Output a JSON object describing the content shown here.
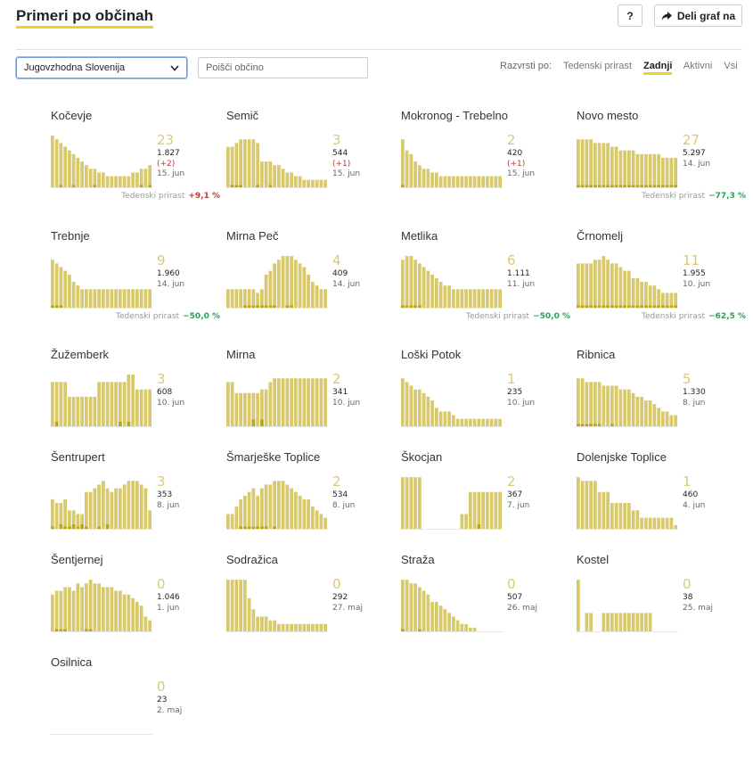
{
  "header": {
    "title": "Primeri po občinah",
    "help_label": "?",
    "share_label": "Deli graf na"
  },
  "controls": {
    "region_selected": "Jugovzhodna Slovenija",
    "search_placeholder": "Poišči občino",
    "sort_label": "Razvrsti po:",
    "sort_options": [
      "Tedenski prirast",
      "Zadnji",
      "Aktivni",
      "Vsi"
    ],
    "sort_active": "Zadnji"
  },
  "colors": {
    "bar": "#d8c96c",
    "bar_dark": "#b8a614",
    "accent": "#f2cf2a",
    "positive": "#c0392b",
    "negative": "#27a35a"
  },
  "weekly_label": "Tedenski prirast",
  "municipalities": [
    {
      "name": "Kočevje",
      "active": "23",
      "total": "1.827",
      "diff": "(+2)",
      "date": "15. jun",
      "weekly": "+9,1 %",
      "weekly_type": "pos",
      "bars": [
        14,
        13,
        12,
        11,
        10,
        9,
        8,
        7,
        6,
        5,
        5,
        4,
        4,
        3,
        3,
        3,
        3,
        3,
        3,
        4,
        4,
        5,
        5,
        6
      ],
      "dark": [
        0,
        0,
        1,
        0,
        0,
        1,
        0,
        0,
        0,
        0,
        1,
        0,
        0,
        0,
        0,
        0,
        0,
        0,
        0,
        0,
        0,
        1,
        0,
        1
      ]
    },
    {
      "name": "Semič",
      "active": "3",
      "total": "544",
      "diff": "(+1)",
      "date": "15. jun",
      "weekly": "",
      "weekly_type": "",
      "bars": [
        11,
        11,
        12,
        13,
        13,
        13,
        13,
        12,
        7,
        7,
        7,
        6,
        6,
        5,
        4,
        4,
        3,
        3,
        2,
        2,
        2,
        2,
        2,
        2
      ],
      "dark": [
        0,
        1,
        1,
        1,
        0,
        0,
        0,
        1,
        0,
        0,
        1,
        0,
        0,
        0,
        0,
        0,
        0,
        0,
        0,
        0,
        0,
        0,
        0,
        0
      ]
    },
    {
      "name": "Mokronog - Trebelno",
      "active": "2",
      "total": "420",
      "diff": "(+1)",
      "date": "15. jun",
      "weekly": "",
      "weekly_type": "",
      "bars": [
        13,
        10,
        9,
        7,
        6,
        5,
        5,
        4,
        4,
        3,
        3,
        3,
        3,
        3,
        3,
        3,
        3,
        3,
        3,
        3,
        3,
        3,
        3,
        3
      ],
      "dark": [
        1,
        0,
        0,
        0,
        0,
        0,
        0,
        0,
        0,
        0,
        0,
        0,
        0,
        0,
        0,
        0,
        0,
        0,
        0,
        0,
        0,
        0,
        0,
        0
      ]
    },
    {
      "name": "Novo mesto",
      "active": "27",
      "total": "5.297",
      "diff": "",
      "date": "14. jun",
      "weekly": "−77,3 %",
      "weekly_type": "neg",
      "bars": [
        13,
        13,
        13,
        13,
        12,
        12,
        12,
        12,
        11,
        11,
        10,
        10,
        10,
        10,
        9,
        9,
        9,
        9,
        9,
        9,
        8,
        8,
        8,
        8
      ],
      "dark": [
        1,
        1,
        1,
        1,
        1,
        1,
        1,
        1,
        1,
        1,
        1,
        1,
        1,
        1,
        1,
        1,
        1,
        1,
        1,
        1,
        1,
        1,
        1,
        1
      ]
    },
    {
      "name": "Trebnje",
      "active": "9",
      "total": "1.960",
      "diff": "",
      "date": "14. jun",
      "weekly": "−50,0 %",
      "weekly_type": "neg",
      "bars": [
        13,
        12,
        11,
        10,
        9,
        7,
        6,
        5,
        5,
        5,
        5,
        5,
        5,
        5,
        5,
        5,
        5,
        5,
        5,
        5,
        5,
        5,
        5,
        5
      ],
      "dark": [
        1,
        1,
        1,
        0,
        0,
        0,
        0,
        0,
        0,
        0,
        0,
        0,
        0,
        0,
        0,
        0,
        0,
        0,
        0,
        0,
        0,
        0,
        0,
        0
      ]
    },
    {
      "name": "Mirna Peč",
      "active": "4",
      "total": "409",
      "diff": "",
      "date": "14. jun",
      "weekly": "",
      "weekly_type": "",
      "bars": [
        5,
        5,
        5,
        5,
        5,
        5,
        5,
        4,
        5,
        9,
        10,
        12,
        13,
        14,
        14,
        14,
        13,
        12,
        11,
        9,
        7,
        6,
        5,
        5
      ],
      "dark": [
        0,
        0,
        0,
        0,
        1,
        1,
        1,
        1,
        1,
        1,
        1,
        1,
        0,
        0,
        1,
        1,
        0,
        0,
        0,
        0,
        0,
        0,
        0,
        0
      ]
    },
    {
      "name": "Metlika",
      "active": "6",
      "total": "1.111",
      "diff": "",
      "date": "11. jun",
      "weekly": "−50,0 %",
      "weekly_type": "neg",
      "bars": [
        13,
        14,
        14,
        13,
        12,
        11,
        10,
        9,
        8,
        7,
        6,
        6,
        5,
        5,
        5,
        5,
        5,
        5,
        5,
        5,
        5,
        5,
        5,
        5
      ],
      "dark": [
        1,
        1,
        1,
        1,
        1,
        0,
        0,
        0,
        0,
        0,
        0,
        0,
        0,
        0,
        0,
        0,
        0,
        0,
        0,
        0,
        0,
        0,
        0,
        0
      ]
    },
    {
      "name": "Črnomelj",
      "active": "11",
      "total": "1.955",
      "diff": "",
      "date": "10. jun",
      "weekly": "−62,5 %",
      "weekly_type": "neg",
      "bars": [
        12,
        12,
        12,
        12,
        13,
        13,
        14,
        13,
        12,
        12,
        11,
        10,
        10,
        8,
        8,
        7,
        7,
        6,
        6,
        5,
        4,
        4,
        4,
        4
      ],
      "dark": [
        1,
        1,
        1,
        1,
        1,
        1,
        1,
        1,
        1,
        1,
        1,
        1,
        1,
        1,
        1,
        1,
        1,
        1,
        1,
        1,
        1,
        1,
        1,
        1
      ]
    },
    {
      "name": "Žužemberk",
      "active": "3",
      "total": "608",
      "diff": "",
      "date": "10. jun",
      "weekly": "",
      "weekly_type": "",
      "bars": [
        12,
        12,
        12,
        12,
        8,
        8,
        8,
        8,
        8,
        8,
        8,
        12,
        12,
        12,
        12,
        12,
        12,
        12,
        14,
        14,
        10,
        10,
        10,
        10
      ],
      "dark": [
        0,
        2,
        0,
        0,
        0,
        0,
        0,
        0,
        0,
        0,
        0,
        0,
        0,
        0,
        0,
        0,
        2,
        0,
        2,
        0,
        0,
        0,
        0,
        0
      ]
    },
    {
      "name": "Mirna",
      "active": "2",
      "total": "341",
      "diff": "",
      "date": "10. jun",
      "weekly": "",
      "weekly_type": "",
      "bars": [
        12,
        12,
        9,
        9,
        9,
        9,
        9,
        9,
        10,
        10,
        12,
        13,
        13,
        13,
        13,
        13,
        13,
        13,
        13,
        13,
        13,
        13,
        13,
        13
      ],
      "dark": [
        0,
        0,
        0,
        0,
        0,
        0,
        3,
        0,
        3,
        0,
        0,
        0,
        0,
        0,
        0,
        0,
        0,
        0,
        0,
        0,
        0,
        0,
        0,
        0
      ]
    },
    {
      "name": "Loški Potok",
      "active": "1",
      "total": "235",
      "diff": "",
      "date": "10. jun",
      "weekly": "",
      "weekly_type": "",
      "bars": [
        13,
        12,
        11,
        10,
        10,
        9,
        8,
        7,
        5,
        4,
        4,
        4,
        3,
        2,
        2,
        2,
        2,
        2,
        2,
        2,
        2,
        2,
        2,
        2
      ],
      "dark": [
        0,
        0,
        0,
        0,
        0,
        0,
        0,
        0,
        0,
        0,
        0,
        0,
        0,
        0,
        0,
        0,
        0,
        0,
        0,
        0,
        0,
        0,
        0,
        0
      ]
    },
    {
      "name": "Ribnica",
      "active": "5",
      "total": "1.330",
      "diff": "",
      "date": "8. jun",
      "weekly": "",
      "weekly_type": "",
      "bars": [
        13,
        13,
        12,
        12,
        12,
        12,
        11,
        11,
        11,
        11,
        10,
        10,
        10,
        9,
        8,
        8,
        7,
        7,
        6,
        5,
        4,
        4,
        3,
        3
      ],
      "dark": [
        1,
        1,
        1,
        1,
        1,
        1,
        0,
        0,
        1,
        0,
        0,
        0,
        0,
        0,
        0,
        0,
        0,
        0,
        0,
        0,
        0,
        0,
        0,
        0
      ]
    },
    {
      "name": "Šentrupert",
      "active": "3",
      "total": "353",
      "diff": "",
      "date": "8. jun",
      "weekly": "",
      "weekly_type": "",
      "bars": [
        8,
        7,
        7,
        8,
        5,
        5,
        4,
        4,
        10,
        10,
        11,
        12,
        13,
        11,
        10,
        11,
        11,
        12,
        13,
        13,
        13,
        12,
        11,
        5
      ],
      "dark": [
        1,
        0,
        2,
        1,
        1,
        2,
        1,
        2,
        1,
        0,
        0,
        1,
        0,
        2,
        0,
        0,
        0,
        0,
        0,
        0,
        0,
        0,
        0,
        0
      ]
    },
    {
      "name": "Šmarješke Toplice",
      "active": "2",
      "total": "534",
      "diff": "",
      "date": "8. jun",
      "weekly": "",
      "weekly_type": "",
      "bars": [
        4,
        4,
        6,
        8,
        9,
        10,
        11,
        9,
        11,
        12,
        12,
        13,
        13,
        13,
        12,
        11,
        10,
        9,
        8,
        8,
        6,
        5,
        4,
        3
      ],
      "dark": [
        0,
        0,
        0,
        1,
        1,
        1,
        1,
        1,
        1,
        1,
        0,
        1,
        0,
        0,
        0,
        0,
        0,
        0,
        0,
        0,
        0,
        0,
        0,
        0
      ]
    },
    {
      "name": "Škocjan",
      "active": "2",
      "total": "367",
      "diff": "",
      "date": "7. jun",
      "weekly": "",
      "weekly_type": "",
      "bars": [
        14,
        14,
        14,
        14,
        14,
        0,
        0,
        0,
        0,
        0,
        0,
        0,
        0,
        0,
        4,
        4,
        10,
        10,
        10,
        10,
        10,
        10,
        10,
        10
      ],
      "dark": [
        0,
        0,
        0,
        0,
        0,
        0,
        0,
        0,
        0,
        0,
        0,
        0,
        0,
        0,
        0,
        0,
        0,
        0,
        2,
        0,
        0,
        0,
        0,
        0
      ]
    },
    {
      "name": "Dolenjske Toplice",
      "active": "1",
      "total": "460",
      "diff": "",
      "date": "4. jun",
      "weekly": "",
      "weekly_type": "",
      "bars": [
        14,
        13,
        13,
        13,
        13,
        10,
        10,
        10,
        7,
        7,
        7,
        7,
        7,
        5,
        5,
        3,
        3,
        3,
        3,
        3,
        3,
        3,
        3,
        1
      ],
      "dark": [
        0,
        0,
        0,
        0,
        0,
        0,
        0,
        0,
        0,
        0,
        0,
        0,
        0,
        0,
        0,
        0,
        0,
        0,
        0,
        0,
        0,
        0,
        0,
        0
      ]
    },
    {
      "name": "Šentjernej",
      "active": "0",
      "total": "1.046",
      "diff": "",
      "date": "1. jun",
      "weekly": "",
      "weekly_type": "",
      "bars": [
        10,
        11,
        11,
        12,
        12,
        11,
        13,
        12,
        13,
        14,
        13,
        13,
        12,
        12,
        12,
        11,
        11,
        10,
        10,
        9,
        8,
        7,
        4,
        3
      ],
      "dark": [
        0,
        1,
        1,
        1,
        0,
        0,
        0,
        0,
        1,
        1,
        0,
        0,
        0,
        0,
        0,
        0,
        0,
        0,
        0,
        0,
        0,
        0,
        0,
        0
      ]
    },
    {
      "name": "Sodražica",
      "active": "0",
      "total": "292",
      "diff": "",
      "date": "27. maj",
      "weekly": "",
      "weekly_type": "",
      "bars": [
        14,
        14,
        14,
        14,
        14,
        9,
        6,
        4,
        4,
        4,
        3,
        3,
        2,
        2,
        2,
        2,
        2,
        2,
        2,
        2,
        2,
        2,
        2,
        2
      ],
      "dark": [
        0,
        0,
        0,
        0,
        0,
        0,
        0,
        0,
        0,
        0,
        0,
        0,
        0,
        0,
        0,
        0,
        0,
        0,
        0,
        0,
        0,
        0,
        0,
        0
      ]
    },
    {
      "name": "Straža",
      "active": "0",
      "total": "507",
      "diff": "",
      "date": "26. maj",
      "weekly": "",
      "weekly_type": "",
      "bars": [
        14,
        14,
        13,
        13,
        12,
        11,
        10,
        8,
        8,
        7,
        6,
        5,
        4,
        3,
        2,
        2,
        1,
        1,
        0,
        0,
        0,
        0,
        0,
        0
      ],
      "dark": [
        1,
        0,
        0,
        0,
        1,
        0,
        0,
        0,
        0,
        0,
        0,
        0,
        0,
        0,
        0,
        0,
        0,
        0,
        0,
        0,
        0,
        0,
        0,
        0
      ]
    },
    {
      "name": "Kostel",
      "active": "0",
      "total": "38",
      "diff": "",
      "date": "25. maj",
      "weekly": "",
      "weekly_type": "",
      "bars": [
        14,
        0,
        5,
        5,
        0,
        0,
        5,
        5,
        5,
        5,
        5,
        5,
        5,
        5,
        5,
        5,
        5,
        5,
        0,
        0,
        0,
        0,
        0,
        0
      ],
      "dark": [
        0,
        0,
        0,
        0,
        0,
        0,
        0,
        0,
        0,
        0,
        0,
        0,
        0,
        0,
        0,
        0,
        0,
        0,
        0,
        0,
        0,
        0,
        0,
        0
      ]
    },
    {
      "name": "Osilnica",
      "active": "0",
      "total": "23",
      "diff": "",
      "date": "2. maj",
      "weekly": "",
      "weekly_type": "",
      "bars": [
        0,
        0,
        0,
        0,
        0,
        0,
        0,
        0,
        0,
        0,
        0,
        0,
        0,
        0,
        0,
        0,
        0,
        0,
        0,
        0,
        0,
        0,
        0,
        0
      ],
      "dark": [
        0,
        0,
        0,
        0,
        0,
        0,
        0,
        0,
        0,
        0,
        0,
        0,
        0,
        0,
        0,
        0,
        0,
        0,
        0,
        0,
        0,
        0,
        0,
        0
      ]
    }
  ]
}
